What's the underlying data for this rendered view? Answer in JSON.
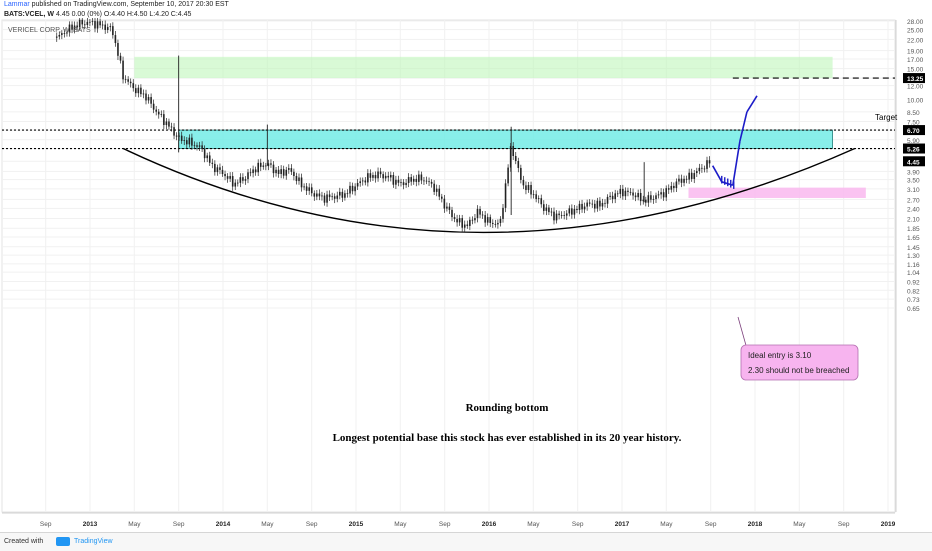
{
  "header": {
    "line1_author": "Lammar",
    "line1_rest": "published on TradingView.com, September 10, 2017 20:30 EST",
    "line2_symbol": "BATS:VCEL, W",
    "line2_ohlc": "4.45 0.00 (0%) O:4.40 H:4.50 L:4.20 C:4.45"
  },
  "footer": {
    "created_with": "Created with",
    "brand": "TradingView"
  },
  "chart_data": {
    "type": "candlestick",
    "title": "VERICEL CORP, W, BATS",
    "y_scale": "log",
    "ylim": [
      0.55,
      28
    ],
    "y_ticks": [
      "28.00",
      "25.00",
      "22.00",
      "19.00",
      "17.00",
      "15.00",
      "13.25",
      "12.00",
      "10.00",
      "8.50",
      "7.50",
      "6.70",
      "5.90",
      "5.26",
      "4.45",
      "3.90",
      "3.50",
      "3.10",
      "2.70",
      "2.40",
      "2.10",
      "1.85",
      "1.65",
      "1.45",
      "1.30",
      "1.16",
      "1.04",
      "0.92",
      "0.82",
      "0.73",
      "0.65"
    ],
    "highlighted_ticks": [
      "13.25",
      "6.70",
      "5.26",
      "4.45"
    ],
    "x_ticks": [
      "Sep",
      "2013",
      "May",
      "Sep",
      "2014",
      "May",
      "Sep",
      "2015",
      "May",
      "Sep",
      "2016",
      "May",
      "Sep",
      "2017",
      "May",
      "Sep",
      "2018",
      "May",
      "Sep",
      "2019"
    ],
    "series": [
      {
        "points": [
          [
            "2012-10",
            22.5
          ],
          [
            "2012-11",
            25.0
          ],
          [
            "2012-12",
            27.0
          ],
          [
            "2013-01",
            27.5
          ],
          [
            "2013-02",
            26.5
          ],
          [
            "2013-03",
            25.0
          ],
          [
            "2013-04",
            13.5
          ],
          [
            "2013-05",
            11.5
          ],
          [
            "2013-06",
            10.5
          ],
          [
            "2013-07",
            8.5
          ],
          [
            "2013-08",
            7.2
          ],
          [
            "2013-09",
            6.0
          ],
          [
            "2013-10",
            5.7
          ],
          [
            "2013-11",
            5.3
          ],
          [
            "2013-12",
            4.2
          ],
          [
            "2014-01",
            3.8
          ],
          [
            "2014-02",
            3.3
          ],
          [
            "2014-03",
            3.6
          ],
          [
            "2014-04",
            4.1
          ],
          [
            "2014-05",
            4.3
          ],
          [
            "2014-06",
            3.8
          ],
          [
            "2014-07",
            4.0
          ],
          [
            "2014-08",
            3.3
          ],
          [
            "2014-09",
            2.95
          ],
          [
            "2014-10",
            2.75
          ],
          [
            "2014-11",
            2.8
          ],
          [
            "2014-12",
            2.9
          ],
          [
            "2015-01",
            3.25
          ],
          [
            "2015-02",
            3.6
          ],
          [
            "2015-03",
            3.75
          ],
          [
            "2015-04",
            3.6
          ],
          [
            "2015-05",
            3.3
          ],
          [
            "2015-06",
            3.5
          ],
          [
            "2015-07",
            3.55
          ],
          [
            "2015-08",
            3.2
          ],
          [
            "2015-09",
            2.5
          ],
          [
            "2015-10",
            2.05
          ],
          [
            "2015-11",
            1.9
          ],
          [
            "2015-12",
            2.3
          ],
          [
            "2016-01",
            2.0
          ],
          [
            "2016-02",
            1.95
          ],
          [
            "2016-03",
            5.5
          ],
          [
            "2016-04",
            3.3
          ],
          [
            "2016-05",
            2.9
          ],
          [
            "2016-06",
            2.4
          ],
          [
            "2016-07",
            2.15
          ],
          [
            "2016-08",
            2.25
          ],
          [
            "2016-09",
            2.4
          ],
          [
            "2016-10",
            2.55
          ],
          [
            "2016-11",
            2.5
          ],
          [
            "2016-12",
            2.8
          ],
          [
            "2017-01",
            3.0
          ],
          [
            "2017-02",
            2.9
          ],
          [
            "2017-03",
            2.65
          ],
          [
            "2017-04",
            2.8
          ],
          [
            "2017-05",
            3.0
          ],
          [
            "2017-06",
            3.4
          ],
          [
            "2017-07",
            3.6
          ],
          [
            "2017-08",
            4.0
          ],
          [
            "2017-09",
            4.45
          ]
        ]
      },
      {
        "points": [
          [
            "2017-09",
            4.2
          ],
          [
            "2017-10",
            3.4
          ],
          [
            "2017-11",
            3.25
          ],
          [
            "2017-12",
            5.8
          ],
          [
            "2018-01",
            8.5
          ],
          [
            "2018-01",
            10.5
          ]
        ]
      }
    ],
    "levels": [
      {
        "label": "Target",
        "value": 13.25,
        "style": "dashed"
      },
      {
        "value": 6.7,
        "style": "dotted"
      },
      {
        "value": 5.26,
        "style": "dotted"
      }
    ],
    "zones": [
      {
        "name": "green",
        "from": 13.25,
        "to": 17.5,
        "start": "2013-05",
        "end": "2018-08",
        "color": "#b9f5b4"
      },
      {
        "name": "cyan",
        "from": 5.26,
        "to": 6.7,
        "start": "2013-09",
        "end": "2018-08",
        "color": "#73ece6"
      },
      {
        "name": "pink",
        "from": 2.75,
        "to": 3.15,
        "start": "2017-07",
        "end": "2018-11",
        "color": "#f9b8ee"
      }
    ],
    "annotations": {
      "rounding_bottom": "Rounding bottom",
      "longest_base": "Longest potential base this stock has ever established in its 20 year history.",
      "entry_line1": "Ideal entry is 3.10",
      "entry_line2": "2.30 should not be breached",
      "target_label": "Target"
    }
  }
}
